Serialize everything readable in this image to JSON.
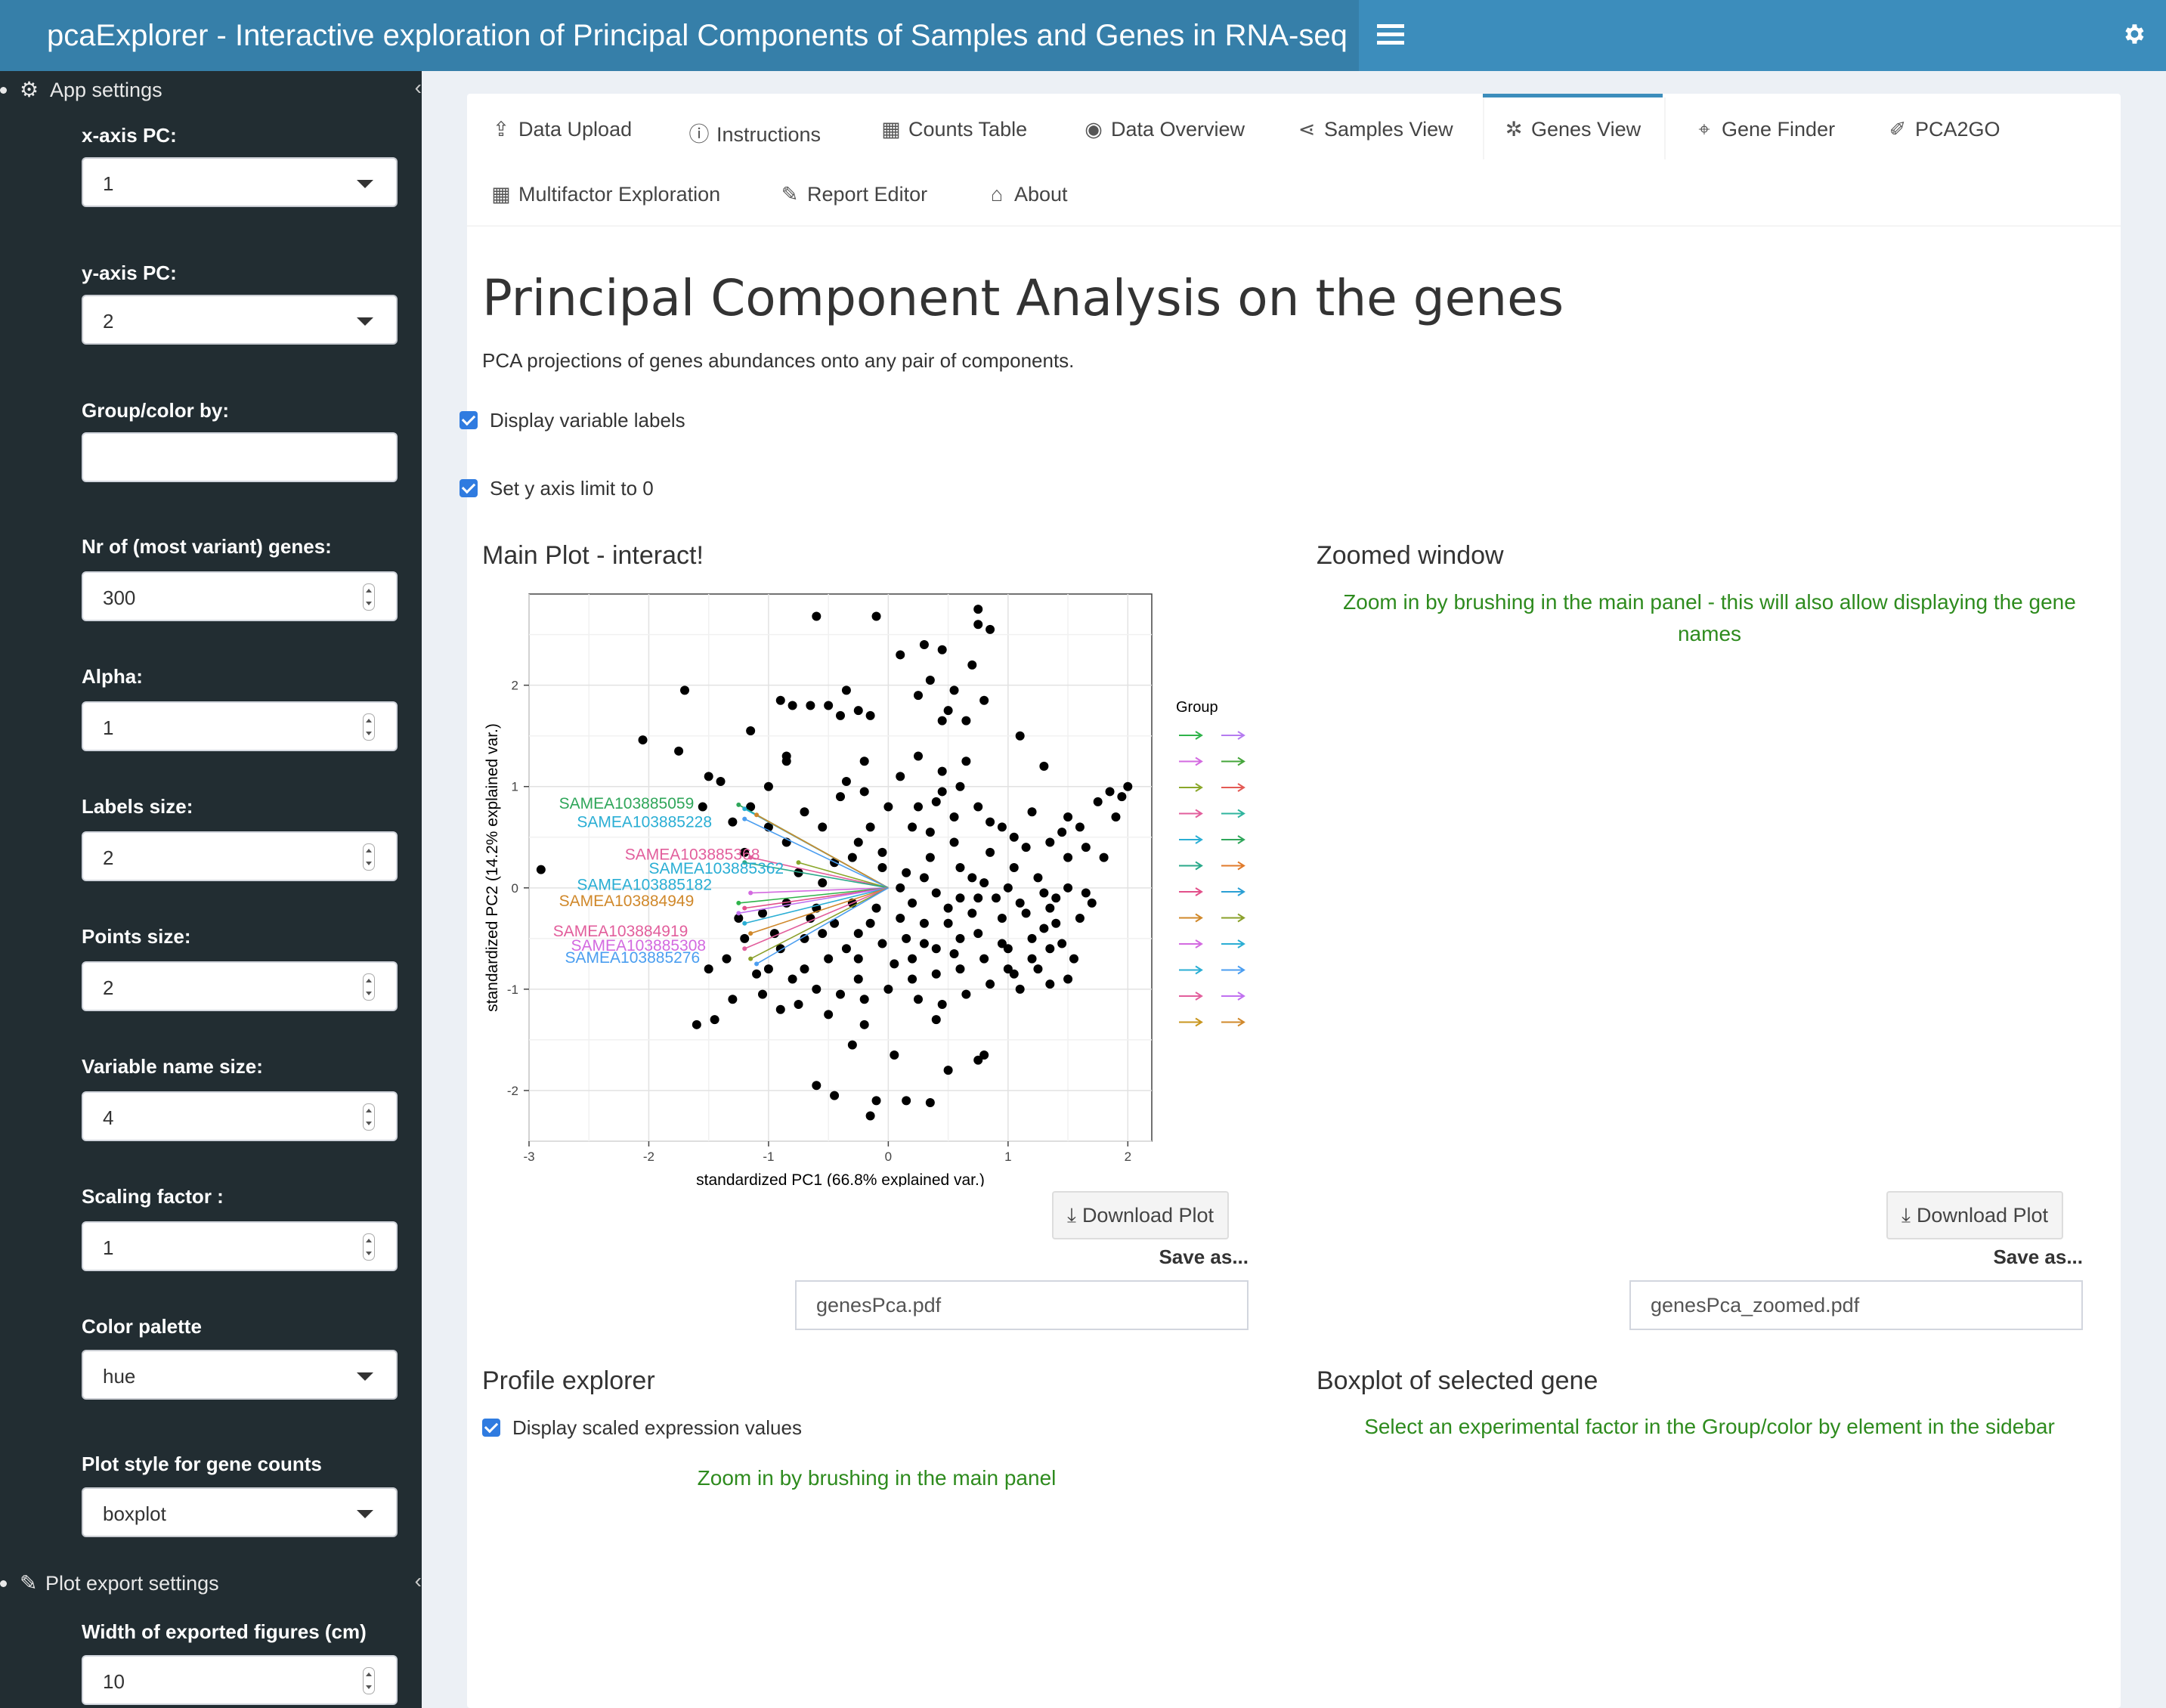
{
  "header": {
    "title": "pcaExplorer - Interactive exploration of Principal Components of Samples and Genes in RNA-seq"
  },
  "sidebar": {
    "app_settings_title": "App settings",
    "plot_export_title": "Plot export settings",
    "fields": {
      "x_pc": {
        "label": "x-axis PC:",
        "value": "1"
      },
      "y_pc": {
        "label": "y-axis PC:",
        "value": "2"
      },
      "group": {
        "label": "Group/color by:",
        "value": ""
      },
      "nr_genes": {
        "label": "Nr of (most variant) genes:",
        "value": "300"
      },
      "alpha": {
        "label": "Alpha:",
        "value": "1"
      },
      "labels_size": {
        "label": "Labels size:",
        "value": "2"
      },
      "points_size": {
        "label": "Points size:",
        "value": "2"
      },
      "varname_size": {
        "label": "Variable name size:",
        "value": "4"
      },
      "scaling": {
        "label": "Scaling factor :",
        "value": "1"
      },
      "palette": {
        "label": "Color palette",
        "value": "hue"
      },
      "plot_style": {
        "label": "Plot style for gene counts",
        "value": "boxplot"
      },
      "width": {
        "label": "Width of exported figures (cm)",
        "value": "10"
      }
    }
  },
  "tabs": [
    {
      "label": "Data Upload",
      "icon": "upload-icon"
    },
    {
      "label": "Instructions",
      "icon": "info-icon"
    },
    {
      "label": "Counts Table",
      "icon": "table-icon"
    },
    {
      "label": "Data Overview",
      "icon": "eye-icon"
    },
    {
      "label": "Samples View",
      "icon": "share-icon"
    },
    {
      "label": "Genes View",
      "icon": "genes-icon",
      "active": true
    },
    {
      "label": "Gene Finder",
      "icon": "crosshairs-icon"
    },
    {
      "label": "PCA2GO",
      "icon": "magic-icon"
    },
    {
      "label": "Multifactor Exploration",
      "icon": "th-large-icon"
    },
    {
      "label": "Report Editor",
      "icon": "pencil-icon"
    },
    {
      "label": "About",
      "icon": "institution-icon"
    }
  ],
  "main": {
    "title": "Principal Component Analysis on the genes",
    "subtitle": "PCA projections of genes abundances onto any pair of components.",
    "cb_labels": "Display variable labels",
    "cb_ylimit": "Set y axis limit to 0",
    "main_plot_title": "Main Plot - interact!",
    "zoom_title": "Zoomed window",
    "zoom_msg": "Zoom in by brushing in the main panel - this will also allow displaying the gene names",
    "download_label": "Download Plot",
    "save_as": "Save as...",
    "file_main": "genesPca.pdf",
    "file_zoom": "genesPca_zoomed.pdf",
    "profile_title": "Profile explorer",
    "cb_scaled": "Display scaled expression values",
    "profile_msg": "Zoom in by brushing in the main panel",
    "boxplot_title": "Boxplot of selected gene",
    "boxplot_msg": "Select an experimental factor in the Group/color by element in the sidebar"
  },
  "chart_data": {
    "type": "scatter",
    "xlabel": "standardized PC1 (66.8% explained var.)",
    "ylabel": "standardized PC2 (14.2% explained var.)",
    "xlim": [
      -3,
      2.2
    ],
    "ylim": [
      -2.5,
      2.9
    ],
    "xticks": [
      -3,
      -2,
      -1,
      0,
      1,
      2
    ],
    "yticks": [
      -2,
      -1,
      0,
      1,
      2
    ],
    "legend_title": "Group",
    "legend_colors": [
      [
        "#2fb34a",
        "#b57bf0"
      ],
      [
        "#d36ae0",
        "#44a53a"
      ],
      [
        "#8aa72a",
        "#e35a54"
      ],
      [
        "#e25e9c",
        "#2fb49e"
      ],
      [
        "#2aaed4",
        "#2fa65a"
      ],
      [
        "#2aa98a",
        "#e07a2a"
      ],
      [
        "#e2508a",
        "#2a9fd4"
      ],
      [
        "#d0882a",
        "#8aa02a"
      ],
      [
        "#d36ae0",
        "#2aaed4"
      ],
      [
        "#2aaed4",
        "#4b9ef0"
      ],
      [
        "#e25e9c",
        "#c070f0"
      ],
      [
        "#c8961e",
        "#d0882a"
      ]
    ],
    "variable_labels": [
      {
        "text": "SAMEA103885059",
        "color": "#2fa65a"
      },
      {
        "text": "SAMEA103885228",
        "color": "#2aaed4"
      },
      {
        "text": "SAMEA103885368",
        "color": "#e25e9c"
      },
      {
        "text": "SAMEA103885362",
        "color": "#2aaed4"
      },
      {
        "text": "SAMEA103885182",
        "color": "#2aaed4"
      },
      {
        "text": "SAMEA103884949",
        "color": "#d0882a"
      },
      {
        "text": "SAMEA103884919",
        "color": "#e25e9c"
      },
      {
        "text": "SAMEA103885308",
        "color": "#d36ae0"
      },
      {
        "text": "SAMEA103885276",
        "color": "#4b9ef0"
      }
    ],
    "points": [
      [
        -2.9,
        0.18
      ],
      [
        -2.05,
        1.46
      ],
      [
        -1.7,
        1.95
      ],
      [
        -1.75,
        1.35
      ],
      [
        -1.5,
        1.1
      ],
      [
        -1.4,
        1.05
      ],
      [
        -1.55,
        0.8
      ],
      [
        -1.3,
        0.65
      ],
      [
        -1.15,
        0.8
      ],
      [
        -1.0,
        1.0
      ],
      [
        -0.85,
        1.25
      ],
      [
        -1.15,
        1.55
      ],
      [
        -0.85,
        1.3
      ],
      [
        -0.9,
        1.85
      ],
      [
        -0.8,
        1.8
      ],
      [
        -0.65,
        1.8
      ],
      [
        -0.5,
        1.8
      ],
      [
        -0.35,
        1.95
      ],
      [
        -0.25,
        1.75
      ],
      [
        -0.4,
        1.7
      ],
      [
        -0.15,
        1.7
      ],
      [
        -0.6,
        2.68
      ],
      [
        -0.1,
        2.68
      ],
      [
        0.1,
        2.3
      ],
      [
        0.3,
        2.4
      ],
      [
        0.45,
        2.35
      ],
      [
        0.35,
        2.05
      ],
      [
        0.25,
        1.9
      ],
      [
        0.5,
        1.75
      ],
      [
        0.55,
        1.95
      ],
      [
        0.45,
        1.65
      ],
      [
        0.65,
        1.65
      ],
      [
        0.8,
        1.85
      ],
      [
        0.7,
        2.2
      ],
      [
        0.75,
        2.6
      ],
      [
        0.85,
        2.55
      ],
      [
        0.75,
        2.75
      ],
      [
        1.1,
        1.5
      ],
      [
        1.3,
        1.2
      ],
      [
        1.5,
        0.7
      ],
      [
        1.45,
        0.55
      ],
      [
        1.65,
        0.4
      ],
      [
        1.9,
        0.7
      ],
      [
        1.75,
        0.85
      ],
      [
        1.85,
        0.95
      ],
      [
        1.95,
        0.9
      ],
      [
        2.0,
        1.0
      ],
      [
        1.8,
        0.3
      ],
      [
        1.5,
        0.0
      ],
      [
        1.65,
        -0.05
      ],
      [
        1.35,
        -0.2
      ],
      [
        1.3,
        -0.4
      ],
      [
        1.45,
        -0.55
      ],
      [
        1.2,
        -0.7
      ],
      [
        1.0,
        -0.8
      ],
      [
        1.1,
        -1.0
      ],
      [
        1.5,
        -0.9
      ],
      [
        1.35,
        -0.95
      ],
      [
        0.8,
        -1.65
      ],
      [
        0.75,
        -1.7
      ],
      [
        0.5,
        -1.8
      ],
      [
        0.35,
        -2.12
      ],
      [
        0.15,
        -2.1
      ],
      [
        -0.1,
        -2.1
      ],
      [
        -0.15,
        -2.25
      ],
      [
        -0.45,
        -2.05
      ],
      [
        -0.6,
        -1.95
      ],
      [
        -0.3,
        -1.55
      ],
      [
        0.05,
        -1.65
      ],
      [
        -0.2,
        -1.35
      ],
      [
        0.4,
        -1.3
      ],
      [
        -1.3,
        -1.1
      ],
      [
        -1.45,
        -1.3
      ],
      [
        -1.6,
        -1.35
      ],
      [
        -1.0,
        -0.8
      ],
      [
        -0.8,
        -0.9
      ],
      [
        -0.6,
        -1.0
      ],
      [
        -0.4,
        -1.05
      ],
      [
        -0.2,
        -1.1
      ],
      [
        0.0,
        -1.0
      ],
      [
        0.2,
        -0.9
      ],
      [
        0.4,
        -0.85
      ],
      [
        0.6,
        -0.8
      ],
      [
        0.8,
        -0.7
      ],
      [
        1.0,
        -0.6
      ],
      [
        0.6,
        -0.5
      ],
      [
        0.4,
        -0.6
      ],
      [
        0.2,
        -0.7
      ],
      [
        -0.05,
        -0.55
      ],
      [
        -0.25,
        -0.7
      ],
      [
        -0.5,
        -0.7
      ],
      [
        -0.7,
        -0.5
      ],
      [
        -0.9,
        -0.6
      ],
      [
        0.3,
        -0.35
      ],
      [
        0.5,
        -0.2
      ],
      [
        0.75,
        -0.1
      ],
      [
        0.95,
        -0.3
      ],
      [
        1.15,
        -0.25
      ],
      [
        1.25,
        0.1
      ],
      [
        1.05,
        0.2
      ],
      [
        0.85,
        0.35
      ],
      [
        0.7,
        0.1
      ],
      [
        0.55,
        0.45
      ],
      [
        0.35,
        0.3
      ],
      [
        0.15,
        0.15
      ],
      [
        -0.05,
        0.35
      ],
      [
        -0.25,
        0.45
      ],
      [
        -0.45,
        0.25
      ],
      [
        -0.55,
        0.6
      ],
      [
        -0.7,
        0.75
      ],
      [
        -0.4,
        0.9
      ],
      [
        -0.2,
        0.95
      ],
      [
        0.0,
        0.8
      ],
      [
        0.2,
        0.6
      ],
      [
        0.4,
        0.85
      ],
      [
        0.6,
        1.0
      ],
      [
        0.85,
        0.65
      ],
      [
        1.05,
        0.5
      ],
      [
        1.2,
        0.75
      ],
      [
        0.65,
        1.25
      ],
      [
        0.45,
        1.15
      ],
      [
        0.25,
        1.3
      ],
      [
        0.1,
        1.1
      ],
      [
        -0.2,
        1.25
      ],
      [
        -0.35,
        1.05
      ],
      [
        -1.05,
        -0.25
      ],
      [
        -0.85,
        -0.15
      ],
      [
        -0.65,
        -0.3
      ],
      [
        -0.45,
        -0.35
      ],
      [
        -0.25,
        -0.45
      ],
      [
        -0.1,
        -0.2
      ],
      [
        0.1,
        -0.3
      ],
      [
        0.3,
        -0.55
      ],
      [
        0.55,
        -0.65
      ],
      [
        0.75,
        -0.45
      ],
      [
        0.95,
        -0.55
      ],
      [
        1.2,
        -0.5
      ],
      [
        1.35,
        -0.6
      ],
      [
        -1.2,
        -0.5
      ],
      [
        -1.35,
        -0.7
      ],
      [
        -1.1,
        -0.85
      ],
      [
        -0.75,
        -1.15
      ],
      [
        -0.5,
        -1.25
      ],
      [
        -0.25,
        -0.9
      ],
      [
        0.05,
        -0.75
      ],
      [
        0.25,
        -1.1
      ],
      [
        0.45,
        -1.15
      ],
      [
        0.65,
        -1.05
      ],
      [
        0.85,
        -0.95
      ],
      [
        1.05,
        -0.85
      ],
      [
        1.25,
        -0.8
      ],
      [
        -0.95,
        -0.45
      ],
      [
        -0.6,
        -0.2
      ],
      [
        -0.35,
        -0.6
      ],
      [
        -0.15,
        -0.35
      ],
      [
        0.15,
        -0.5
      ],
      [
        0.5,
        -0.35
      ],
      [
        0.7,
        -0.25
      ],
      [
        0.9,
        -0.1
      ],
      [
        1.1,
        -0.15
      ],
      [
        1.4,
        -0.35
      ],
      [
        1.6,
        -0.3
      ],
      [
        1.7,
        -0.15
      ],
      [
        1.55,
        -0.7
      ],
      [
        -1.5,
        -0.8
      ],
      [
        -1.25,
        -0.3
      ],
      [
        -1.05,
        -1.05
      ],
      [
        -0.9,
        -1.2
      ],
      [
        -0.7,
        -0.8
      ],
      [
        -0.55,
        -0.45
      ],
      [
        -0.3,
        -0.15
      ],
      [
        0.1,
        0.0
      ],
      [
        0.3,
        0.1
      ],
      [
        0.6,
        0.2
      ],
      [
        0.8,
        0.05
      ],
      [
        1.0,
        0.0
      ],
      [
        1.3,
        -0.05
      ],
      [
        1.5,
        0.3
      ],
      [
        1.15,
        0.4
      ],
      [
        0.95,
        0.6
      ],
      [
        0.75,
        0.8
      ],
      [
        0.55,
        0.7
      ],
      [
        0.35,
        0.55
      ],
      [
        -0.85,
        0.45
      ],
      [
        -1.0,
        0.6
      ],
      [
        -1.2,
        0.35
      ],
      [
        -0.75,
        0.15
      ],
      [
        -0.55,
        0.05
      ],
      [
        0.45,
        0.95
      ],
      [
        0.25,
        0.8
      ],
      [
        -0.15,
        0.6
      ],
      [
        -0.3,
        0.3
      ],
      [
        -0.05,
        0.2
      ],
      [
        0.2,
        -0.15
      ],
      [
        0.4,
        -0.05
      ],
      [
        0.6,
        -0.1
      ],
      [
        1.4,
        -0.1
      ],
      [
        1.6,
        0.6
      ],
      [
        1.35,
        0.45
      ]
    ]
  }
}
